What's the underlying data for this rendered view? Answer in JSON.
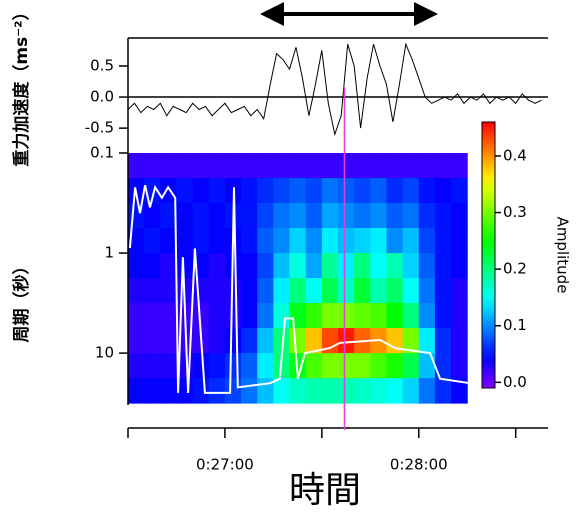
{
  "chart_data": [
    {
      "type": "line",
      "y_label": "重力加速度（ms⁻²）",
      "xlim": [
        1590,
        1720
      ],
      "ylim": [
        -0.9,
        0.95
      ],
      "yticks": [
        0.5,
        {
          "value": 0,
          "label": "0.0"
        },
        -0.5
      ],
      "color": "#000000",
      "marker": {
        "x": 1657,
        "color": "#e040e0"
      },
      "x": [
        1590,
        1592,
        1594,
        1596,
        1598,
        1600,
        1602,
        1604,
        1606,
        1608,
        1610,
        1612,
        1614,
        1616,
        1618,
        1620,
        1622,
        1624,
        1626,
        1628,
        1630,
        1632,
        1634,
        1636,
        1638,
        1640,
        1642,
        1644,
        1646,
        1648,
        1650,
        1652,
        1654,
        1656,
        1658,
        1660,
        1662,
        1664,
        1666,
        1668,
        1670,
        1672,
        1674,
        1676,
        1678,
        1680,
        1682,
        1684,
        1686,
        1688,
        1690,
        1692,
        1694,
        1696,
        1698,
        1700,
        1702,
        1704,
        1706,
        1708,
        1710,
        1712,
        1714,
        1716,
        1718
      ],
      "values": [
        -0.2,
        -0.1,
        -0.25,
        -0.15,
        -0.2,
        -0.1,
        -0.3,
        -0.15,
        -0.2,
        -0.25,
        -0.1,
        -0.2,
        -0.15,
        -0.3,
        -0.2,
        -0.1,
        -0.25,
        -0.2,
        -0.15,
        -0.3,
        -0.2,
        -0.35,
        0.2,
        0.7,
        0.6,
        0.45,
        0.8,
        0.3,
        -0.3,
        0.2,
        0.75,
        -0.1,
        -0.6,
        -0.3,
        0.85,
        0.5,
        -0.5,
        0.3,
        0.85,
        0.5,
        0.2,
        -0.4,
        0.2,
        0.85,
        0.6,
        0.3,
        0.0,
        -0.1,
        -0.05,
        0.0,
        -0.05,
        0.05,
        -0.1,
        0.0,
        -0.05,
        0.05,
        -0.1,
        0.0,
        -0.05,
        0.0,
        -0.1,
        0.05,
        -0.05,
        -0.1,
        -0.05
      ]
    },
    {
      "type": "heatmap",
      "y_label": "周期（秒）",
      "x_label": "時間",
      "colorbar_label": "Amplitude",
      "xlim": [
        1590,
        1720
      ],
      "ylim": [
        0.1,
        33
      ],
      "log_y": true,
      "xticks": [
        {
          "value": 1620,
          "label": "0:27:00"
        },
        {
          "value": 1680,
          "label": "0:28:00"
        }
      ],
      "xminorticks": [
        1590,
        1650,
        1710
      ],
      "yticks": [
        0.1,
        1,
        10
      ],
      "clim": [
        -0.01,
        0.46
      ],
      "cticks": [
        {
          "value": 0,
          "label": "0.0"
        },
        0.1,
        0.2,
        0.3,
        0.4
      ],
      "x_edges": [
        1590,
        1595,
        1600,
        1605,
        1610,
        1615,
        1620,
        1625,
        1630,
        1635,
        1640,
        1645,
        1650,
        1655,
        1660,
        1665,
        1670,
        1675,
        1680,
        1685,
        1690,
        1695
      ],
      "y_edges": [
        0.1,
        0.178,
        0.316,
        0.562,
        1,
        1.78,
        3.16,
        5.62,
        10,
        17.8,
        31.6
      ],
      "z": [
        [
          0.02,
          0.02,
          0.02,
          0.02,
          0.02,
          0.02,
          0.02,
          0.02,
          0.02,
          0.02,
          0.02,
          0.02,
          0.02,
          0.02,
          0.02,
          0.02,
          0.02,
          0.02,
          0.02,
          0.02,
          0.02
        ],
        [
          0.04,
          0.05,
          0.04,
          0.05,
          0.04,
          0.05,
          0.04,
          0.05,
          0.06,
          0.07,
          0.08,
          0.07,
          0.09,
          0.08,
          0.07,
          0.08,
          0.06,
          0.07,
          0.05,
          0.04,
          0.05
        ],
        [
          0.05,
          0.04,
          0.05,
          0.04,
          0.05,
          0.04,
          0.05,
          0.05,
          0.07,
          0.09,
          0.1,
          0.08,
          0.11,
          0.1,
          0.09,
          0.1,
          0.08,
          0.09,
          0.06,
          0.05,
          0.04
        ],
        [
          0.04,
          0.05,
          0.04,
          0.04,
          0.05,
          0.04,
          0.04,
          0.05,
          0.08,
          0.1,
          0.13,
          0.1,
          0.14,
          0.12,
          0.13,
          0.14,
          0.1,
          0.12,
          0.07,
          0.05,
          0.04
        ],
        [
          0.04,
          0.04,
          0.03,
          0.04,
          0.04,
          0.03,
          0.04,
          0.04,
          0.07,
          0.12,
          0.16,
          0.11,
          0.19,
          0.14,
          0.2,
          0.15,
          0.18,
          0.13,
          0.08,
          0.05,
          0.04
        ],
        [
          0.03,
          0.03,
          0.03,
          0.03,
          0.03,
          0.03,
          0.03,
          0.04,
          0.08,
          0.14,
          0.2,
          0.15,
          0.22,
          0.17,
          0.23,
          0.18,
          0.21,
          0.15,
          0.09,
          0.05,
          0.03
        ],
        [
          0.02,
          0.02,
          0.02,
          0.02,
          0.02,
          0.03,
          0.03,
          0.04,
          0.09,
          0.16,
          0.24,
          0.27,
          0.3,
          0.3,
          0.29,
          0.28,
          0.25,
          0.2,
          0.1,
          0.05,
          0.03
        ],
        [
          0.02,
          0.02,
          0.02,
          0.02,
          0.02,
          0.03,
          0.04,
          0.06,
          0.12,
          0.2,
          0.3,
          0.38,
          0.43,
          0.45,
          0.42,
          0.4,
          0.38,
          0.3,
          0.14,
          0.06,
          0.03
        ],
        [
          0.03,
          0.03,
          0.03,
          0.03,
          0.04,
          0.05,
          0.06,
          0.08,
          0.14,
          0.2,
          0.24,
          0.28,
          0.3,
          0.3,
          0.3,
          0.28,
          0.26,
          0.22,
          0.12,
          0.06,
          0.03
        ],
        [
          0.04,
          0.04,
          0.04,
          0.04,
          0.05,
          0.06,
          0.07,
          0.09,
          0.12,
          0.15,
          0.17,
          0.18,
          0.18,
          0.18,
          0.17,
          0.16,
          0.15,
          0.13,
          0.09,
          0.06,
          0.04
        ]
      ],
      "series": [
        {
          "color": "#ffffff",
          "x": [
            1590.6,
            1592.2,
            1593.7,
            1595.3,
            1596.8,
            1598.4,
            1600.5,
            1602.4,
            1604.6,
            1605.5,
            1607,
            1608.6,
            1610.7,
            1613.8,
            1621.6,
            1622.8,
            1624,
            1634,
            1637,
            1638.6,
            1641.1,
            1642.6,
            1644.8,
            1652.5,
            1655.6,
            1668,
            1672.7,
            1683.5,
            1686.6,
            1695.9,
            1698.4
          ],
          "values": [
            0.89,
            0.22,
            0.4,
            0.21,
            0.35,
            0.22,
            0.28,
            0.22,
            0.28,
            25,
            1.1,
            25,
            0.9,
            25,
            25,
            0.22,
            22,
            20,
            18,
            4.5,
            4.5,
            18,
            10,
            8.9,
            7.9,
            7.4,
            8.9,
            10,
            18,
            20,
            0.28
          ]
        }
      ]
    }
  ]
}
